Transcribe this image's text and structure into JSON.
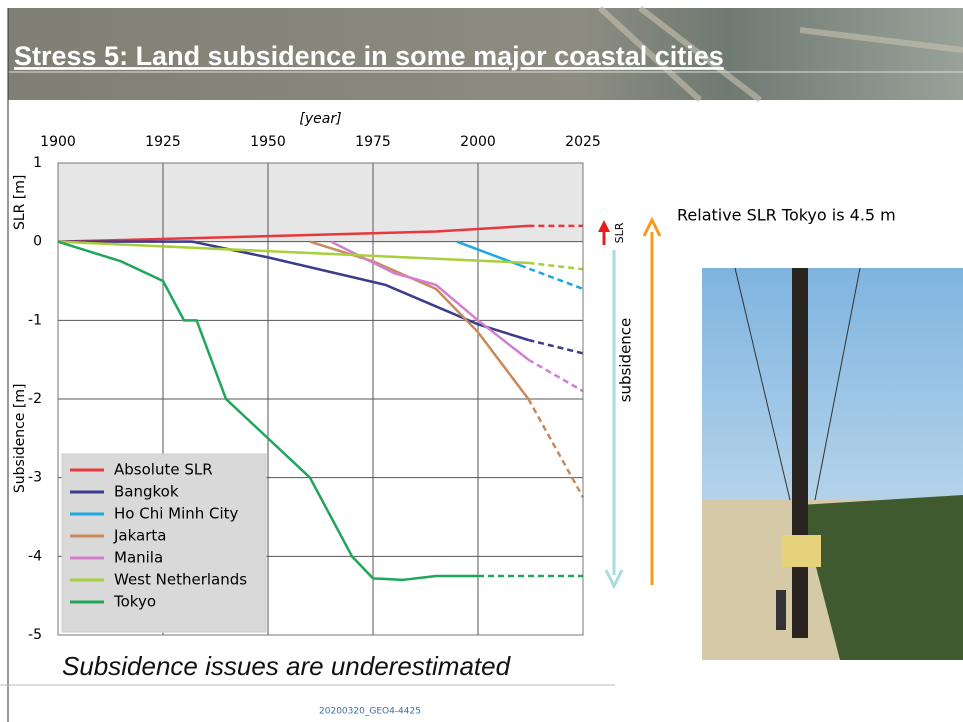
{
  "slide": {
    "title": "Stress 5: Land subsidence in some major coastal cities",
    "caption": "Subsidence issues are underestimated",
    "note": "Relative SLR Tokyo is 4.5 m",
    "footer": "20200320_GEO4-4425",
    "slr_arrow_label": "SLR",
    "subsidence_arrow_label": "subsidence"
  },
  "chart_data": {
    "type": "line",
    "x_label": "[year]",
    "y_label_upper": "SLR [m]",
    "y_label_lower": "Subsidence [m]",
    "xlim": [
      1900,
      2025
    ],
    "xticks": [
      1900,
      1925,
      1950,
      1975,
      2000,
      2025
    ],
    "ylim": [
      -5,
      1
    ],
    "yticks": [
      -5,
      -4,
      -3,
      -2,
      -1,
      0,
      1
    ],
    "grid": true,
    "legend": "lower left",
    "series": [
      {
        "name": "Absolute SLR",
        "color": "#e8383d",
        "x": [
          1900,
          1950,
          1990,
          2012,
          2025
        ],
        "values": [
          0,
          0.07,
          0.13,
          0.2,
          0.2
        ]
      },
      {
        "name": "Bangkok",
        "color": "#3c3c8c",
        "x": [
          1900,
          1932,
          1950,
          1978,
          2000,
          2012,
          2025
        ],
        "values": [
          0,
          0,
          -0.2,
          -0.55,
          -1.05,
          -1.25,
          -1.42
        ]
      },
      {
        "name": "Ho Chi Minh City",
        "color": "#1ea8e0",
        "x": [
          1995,
          2005,
          2010,
          2025
        ],
        "values": [
          0,
          -0.2,
          -0.3,
          -0.6
        ]
      },
      {
        "name": "Jakarta",
        "color": "#c88a5a",
        "x": [
          1960,
          1975,
          1990,
          2000,
          2012,
          2025
        ],
        "values": [
          0,
          -0.25,
          -0.6,
          -1.15,
          -2.0,
          -3.25
        ]
      },
      {
        "name": "Manila",
        "color": "#d27fcf",
        "x": [
          1965,
          1980,
          1990,
          2000,
          2012,
          2025
        ],
        "values": [
          0,
          -0.4,
          -0.55,
          -1.0,
          -1.5,
          -1.9
        ]
      },
      {
        "name": "West Netherlands",
        "color": "#a8cf3c",
        "x": [
          1900,
          2012,
          2025
        ],
        "values": [
          0,
          -0.27,
          -0.35
        ]
      },
      {
        "name": "Tokyo",
        "color": "#1fa659",
        "x": [
          1900,
          1915,
          1925,
          1930,
          1933,
          1940,
          1960,
          1970,
          1975,
          1982,
          1990,
          2000,
          2025
        ],
        "values": [
          0,
          -0.25,
          -0.5,
          -1.0,
          -1.0,
          -2.0,
          -3.0,
          -4.0,
          -4.28,
          -4.3,
          -4.25,
          -4.25,
          -4.25
        ]
      }
    ]
  }
}
